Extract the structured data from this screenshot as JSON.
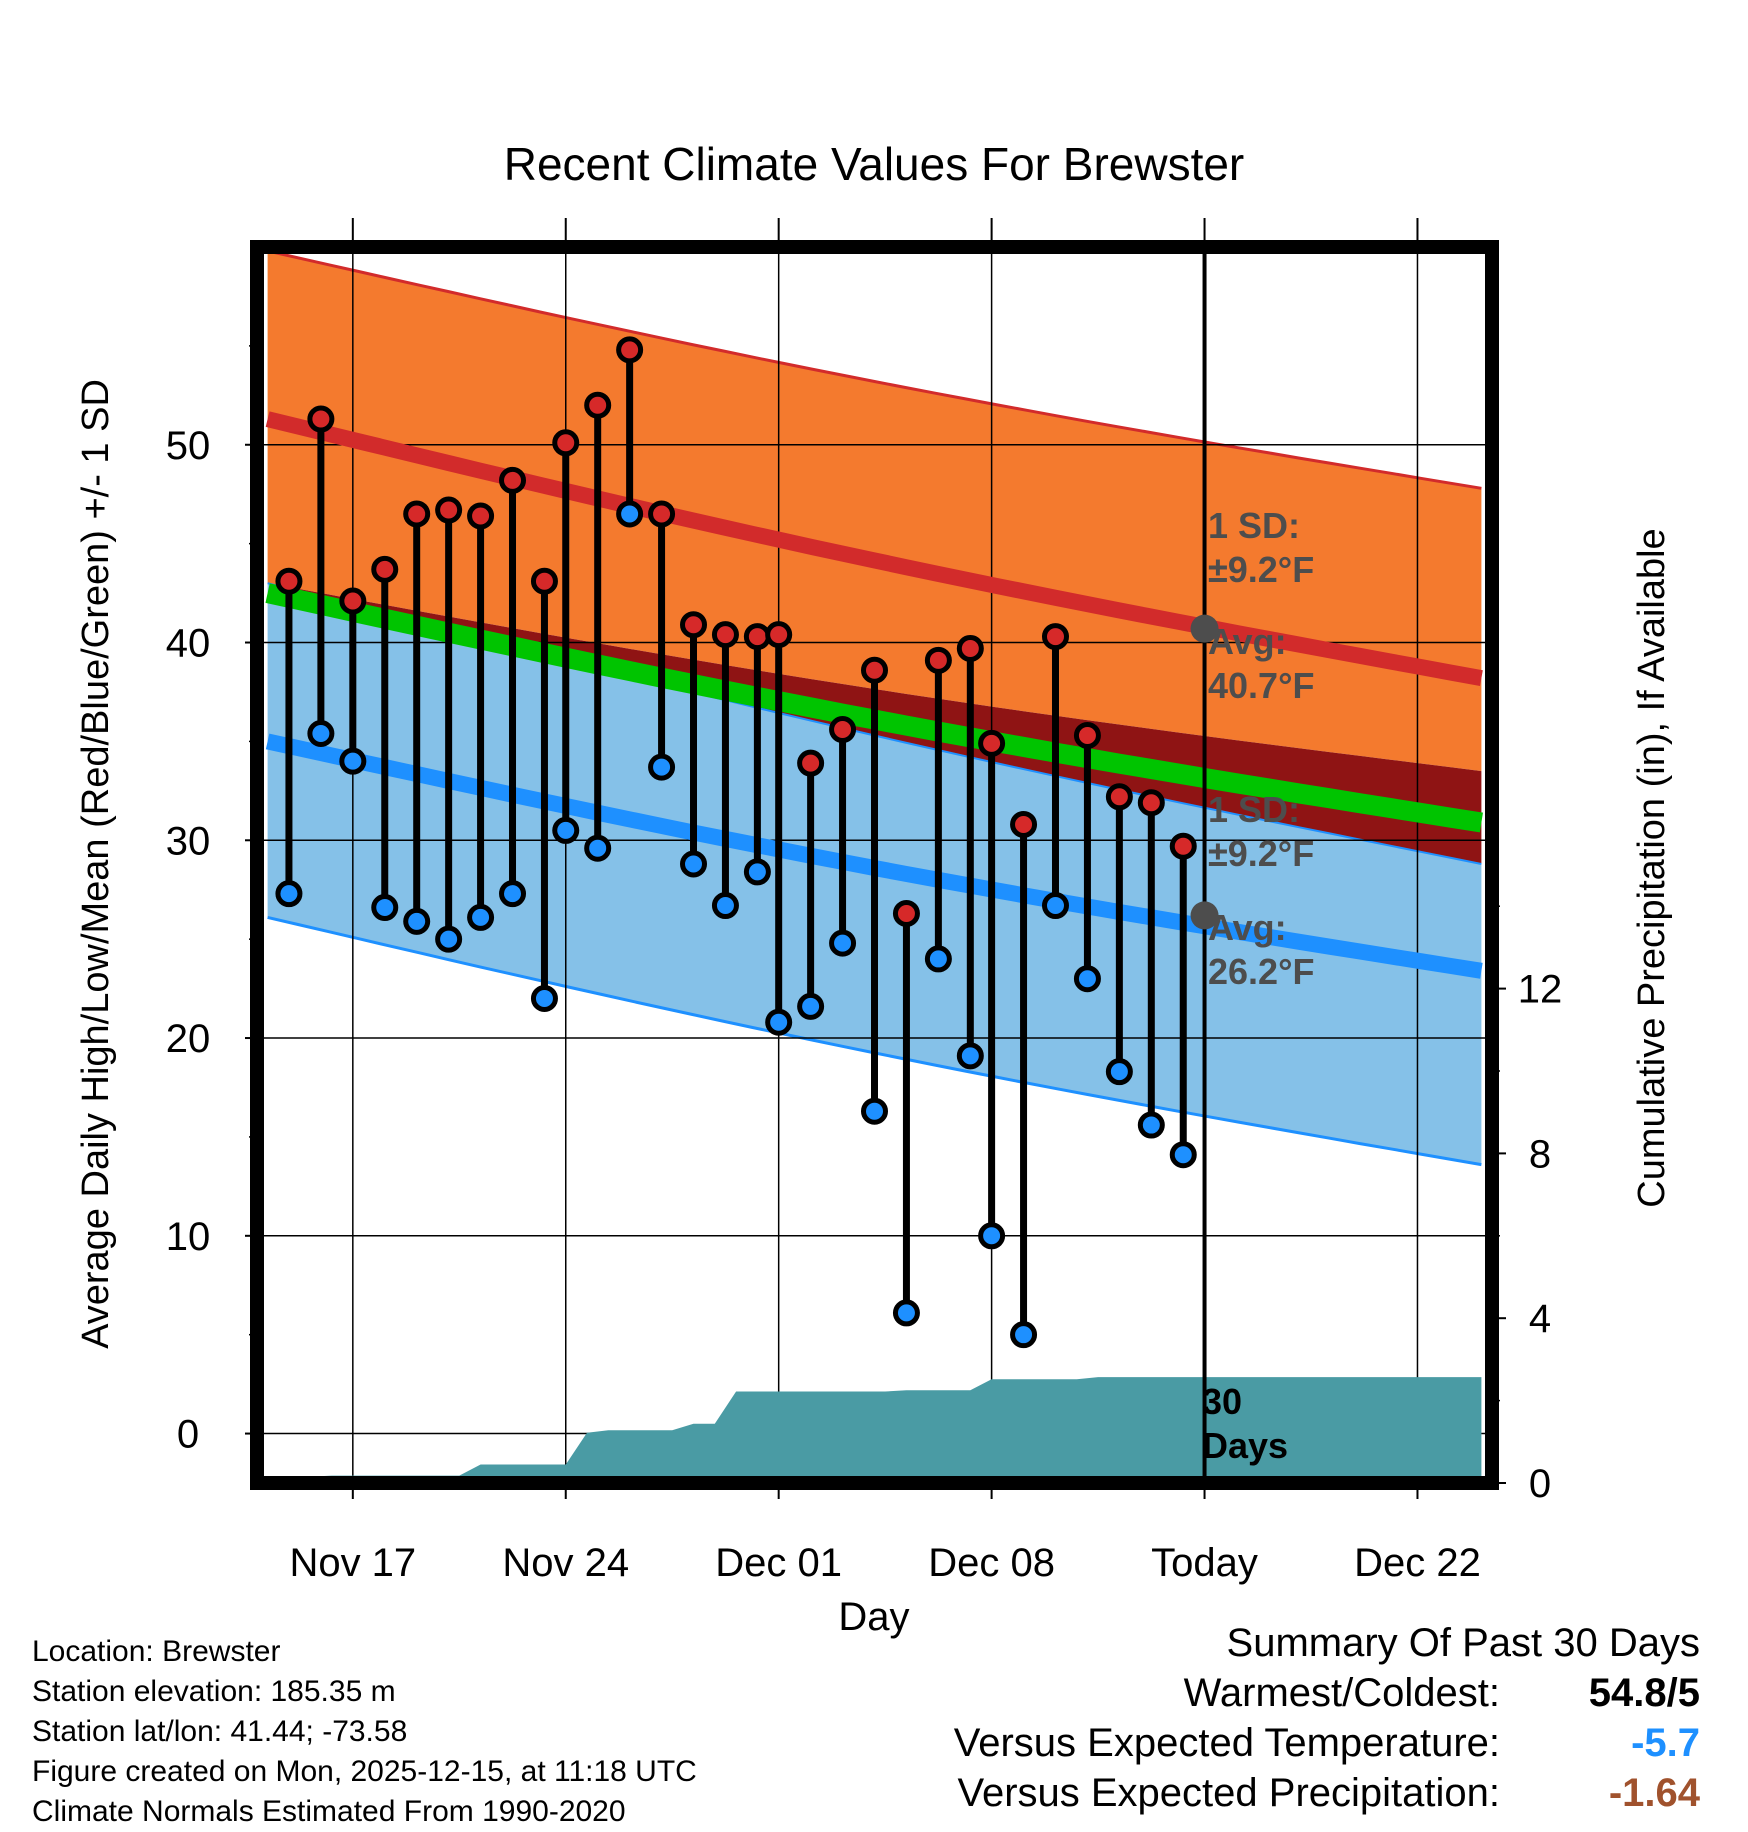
{
  "chart_data": {
    "type": "line",
    "title": "Recent Climate Values For Brewster",
    "xlabel": "Day",
    "ylabel": "Average Daily High/Low/Mean (Red/Blue/Green) +/- 1 SD",
    "y2label": "Cumulative Precipitation (in), If Available",
    "ylim": [
      -2.5,
      60
    ],
    "y_ticks": [
      "0",
      "10",
      "20",
      "30",
      "40",
      "50"
    ],
    "y2lim": [
      0,
      30
    ],
    "y2_ticks": [
      "0",
      "4",
      "8",
      "12"
    ],
    "xlim": [
      -4.5,
      53.5
    ],
    "x_ticks": [
      {
        "day": 0,
        "label": "Nov 17"
      },
      {
        "day": 10,
        "label": "Nov 24"
      },
      {
        "day": 20,
        "label": "Dec 01"
      },
      {
        "day": 30,
        "label": "Dec 08"
      },
      {
        "day": 40,
        "label": "Today"
      },
      {
        "day": 50,
        "label": "Dec 22"
      }
    ],
    "today_day": 40,
    "normals": {
      "days": [
        -4,
        53
      ],
      "high_avg": [
        51.3,
        38.2
      ],
      "high_plus_sd": [
        59.8,
        47.8
      ],
      "high_minus_sd": [
        43.0,
        33.5
      ],
      "low_avg": [
        35.0,
        23.4
      ],
      "low_plus_sd": [
        43.0,
        28.8
      ],
      "low_minus_sd": [
        26.1,
        13.6
      ],
      "mean": [
        42.5,
        30.9
      ]
    },
    "annotations": {
      "high_sd_label": "1 SD:",
      "high_sd_value": "±9.2°F",
      "high_avg_label": "Avg:",
      "high_avg_value": "40.7°F",
      "high_avg_today": 40.7,
      "low_sd_label": "1 SD:",
      "low_sd_value": "±9.2°F",
      "low_avg_label": "Avg:",
      "low_avg_value": "26.2°F",
      "low_avg_today": 26.2,
      "period_label": [
        "30",
        "Days"
      ]
    },
    "series": [
      {
        "name": "Daily High",
        "values": [
          43.1,
          51.3,
          42.1,
          43.7,
          46.5,
          46.7,
          46.4,
          48.2,
          43.1,
          50.1,
          52.0,
          54.8,
          46.5,
          40.9,
          40.4,
          40.3,
          40.4,
          33.9,
          35.6,
          38.6,
          26.3,
          39.1,
          39.7,
          34.9,
          30.8,
          40.3,
          35.3,
          32.2,
          31.9,
          29.7
        ]
      },
      {
        "name": "Daily Low",
        "values": [
          27.3,
          35.4,
          34.0,
          26.6,
          25.9,
          25.0,
          26.1,
          27.3,
          22.0,
          30.5,
          29.6,
          46.5,
          33.7,
          28.8,
          26.7,
          28.4,
          20.8,
          21.6,
          24.8,
          16.3,
          6.1,
          24.0,
          19.1,
          10.0,
          5.0,
          26.7,
          23.0,
          18.3,
          15.6,
          14.1
        ]
      },
      {
        "name": "Cumulative Precipitation",
        "days": [
          -4,
          -3,
          -2,
          -1,
          0,
          1,
          2,
          3,
          4,
          5,
          6,
          7,
          8,
          9,
          10,
          11,
          12,
          13,
          14,
          15,
          16,
          17,
          18,
          19,
          20,
          21,
          22,
          23,
          24,
          25,
          26,
          27,
          28,
          29,
          30,
          31,
          32,
          33,
          34,
          35,
          36,
          37,
          38,
          39,
          53
        ],
        "values": [
          0.05,
          0.15,
          0.15,
          0.18,
          0.18,
          0.18,
          0.18,
          0.18,
          0.18,
          0.18,
          0.45,
          0.45,
          0.45,
          0.45,
          0.45,
          1.22,
          1.28,
          1.28,
          1.28,
          1.28,
          1.44,
          1.44,
          2.22,
          2.22,
          2.22,
          2.22,
          2.22,
          2.22,
          2.22,
          2.22,
          2.25,
          2.25,
          2.25,
          2.25,
          2.52,
          2.52,
          2.52,
          2.52,
          2.52,
          2.57,
          2.57,
          2.57,
          2.57,
          2.57,
          2.57
        ]
      }
    ],
    "data_days": [
      -3,
      -1.5,
      0,
      1.5,
      3,
      4.5,
      6,
      7.5,
      9,
      10,
      11.5,
      13,
      14.5,
      16,
      17.5,
      19,
      20,
      21.5,
      23,
      24.5,
      26,
      27.5,
      29,
      30,
      31.5,
      33,
      34.5,
      36,
      37.5,
      39
    ],
    "colors": {
      "high_band": "#f47a2e",
      "high_line": "#d22b2b",
      "low_band": "#85c1e8",
      "low_line": "#1e90ff",
      "overlap": "#8f1414",
      "mean": "#00c400",
      "precip": "#4a9ba4",
      "high_marker": "#d62929",
      "low_marker": "#1e90ff",
      "annotation": "#4d4d4d"
    }
  },
  "footer": {
    "location": "Location: Brewster",
    "elevation": "Station elevation: 185.35 m",
    "latlon": "Station lat/lon: 41.44; -73.58",
    "created": "Figure created on Mon, 2025-12-15, at 11:18 UTC",
    "normals": "Climate Normals Estimated From 1990-2020"
  },
  "summary": {
    "title": "Summary Of Past 30 Days",
    "warm_cold_label": "Warmest/Coldest:",
    "warm_cold_value": "54.8/5",
    "temp_label": "Versus Expected Temperature:",
    "temp_value": "-5.7",
    "temp_color": "#1e90ff",
    "precip_label": "Versus Expected Precipitation:",
    "precip_value": "-1.64",
    "precip_color": "#a0522d"
  }
}
